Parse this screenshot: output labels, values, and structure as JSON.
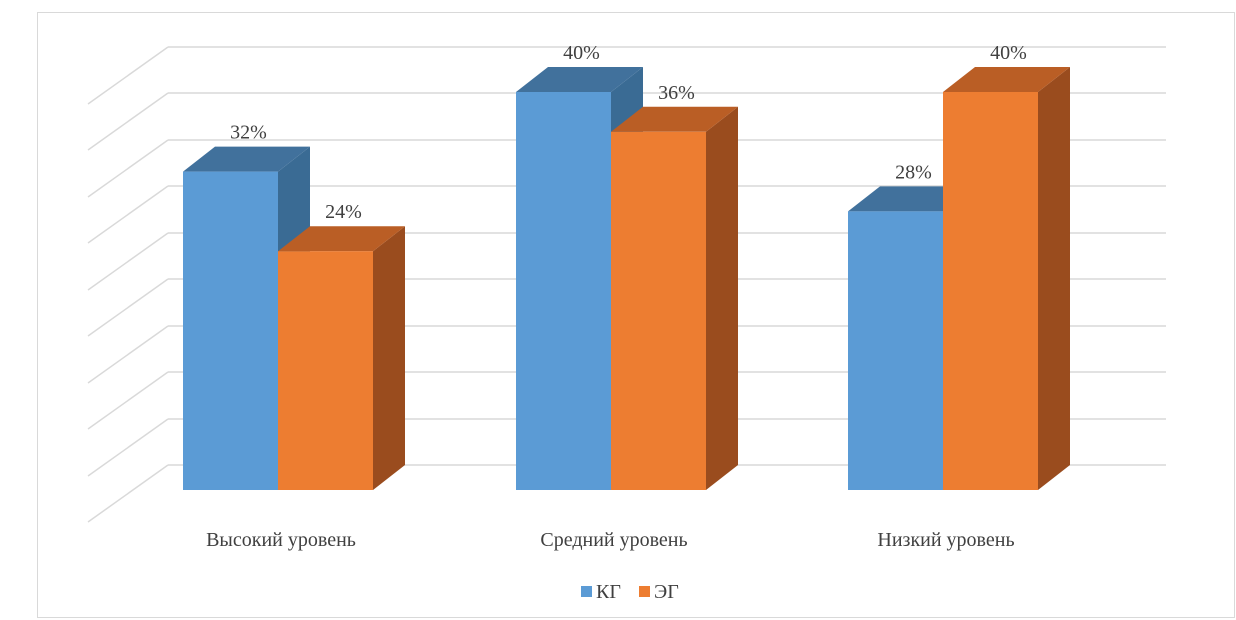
{
  "chart_data": {
    "type": "bar",
    "categories": [
      "Высокий уровень",
      "Средний уровень",
      "Низкий уровень"
    ],
    "series": [
      {
        "name": "КГ",
        "values": [
          32,
          40,
          28
        ],
        "labels": [
          "32%",
          "40%",
          "28%"
        ]
      },
      {
        "name": "ЭГ",
        "values": [
          24,
          36,
          40
        ],
        "labels": [
          "24%",
          "36%",
          "40%"
        ]
      }
    ],
    "ylim": [
      0,
      40
    ],
    "grid": true,
    "legend": "bottom",
    "view": "3d",
    "colors": {
      "КГ": {
        "front": "#5b9bd5",
        "top": "#41719c",
        "side": "#3a6b94"
      },
      "ЭГ": {
        "front": "#ed7d31",
        "top": "#ba5e25",
        "side": "#9a4c1e"
      },
      "grid": "#d9d9d9"
    }
  }
}
